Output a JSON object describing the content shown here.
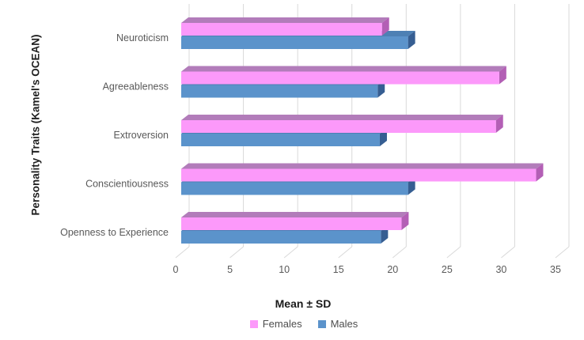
{
  "chart_data": {
    "type": "bar",
    "orientation": "horizontal",
    "style": "3d-clustered",
    "title": "",
    "xlabel": "Mean ± SD",
    "ylabel": "Personality Traits (Kamel's OCEAN)",
    "categories": [
      "Neuroticism",
      "Agreeableness",
      "Extroversion",
      "Conscientiousness",
      "Openness to Experience"
    ],
    "series": [
      {
        "name": "Females",
        "values": [
          18.5,
          29.3,
          29.0,
          32.7,
          20.3
        ],
        "face_color": "#FC99FA",
        "top_color": "#B27CBA",
        "side_color": "#B35FB5"
      },
      {
        "name": "Males",
        "values": [
          20.9,
          18.1,
          18.3,
          20.9,
          18.4
        ],
        "face_color": "#5B93CB",
        "top_color": "#4D80B4",
        "side_color": "#365E92"
      }
    ],
    "x_ticks": [
      0,
      5,
      10,
      15,
      20,
      25,
      30,
      35
    ],
    "xlim": [
      0,
      35
    ],
    "grid": true,
    "legend_position": "bottom",
    "gridline_color": "#D9D9D9",
    "text_color": "#595959"
  }
}
